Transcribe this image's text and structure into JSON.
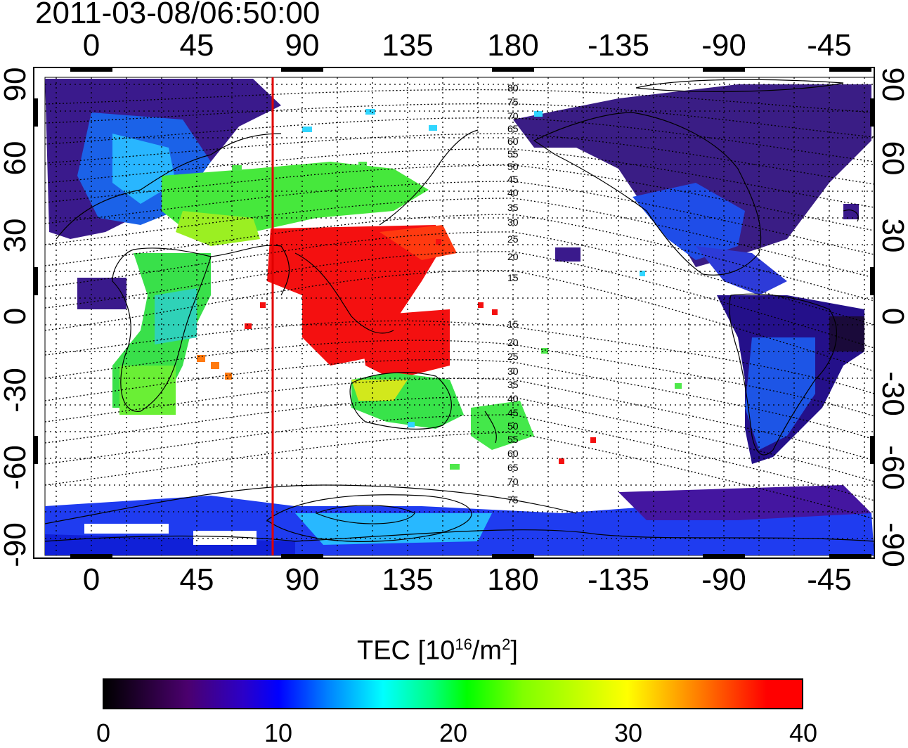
{
  "timestamp": "2011-03-08/06:50:00",
  "top_lon_ticks": [
    "0",
    "45",
    "90",
    "135",
    "180",
    "-135",
    "-90",
    "-45"
  ],
  "bottom_lon_ticks": [
    "0",
    "45",
    "90",
    "135",
    "180",
    "-135",
    "-90",
    "-45"
  ],
  "left_lat_ticks": [
    "90",
    "60",
    "30",
    "0",
    "-30",
    "-60",
    "-90"
  ],
  "right_lat_ticks": [
    "90",
    "60",
    "30",
    "0",
    "-30",
    "-60",
    "-90"
  ],
  "contour_labels": [
    "80",
    "75",
    "70",
    "65",
    "60",
    "55",
    "50",
    "45",
    "40",
    "35",
    "30",
    "25",
    "20",
    "15",
    "15",
    "20",
    "25",
    "30",
    "35",
    "40",
    "45",
    "50",
    "55",
    "60",
    "65",
    "70",
    "75"
  ],
  "colorbar": {
    "title": "TEC  [10",
    "title_exp": "16",
    "title_mid": "/m",
    "title_exp2": "2",
    "title_end": "]",
    "ticks": [
      "0",
      "10",
      "20",
      "30",
      "40"
    ],
    "range": [
      0,
      40
    ]
  },
  "red_meridian_lon": 77,
  "colors": {
    "low": "#000000",
    "high": "#ff0000",
    "meridian": "#e00000"
  }
}
